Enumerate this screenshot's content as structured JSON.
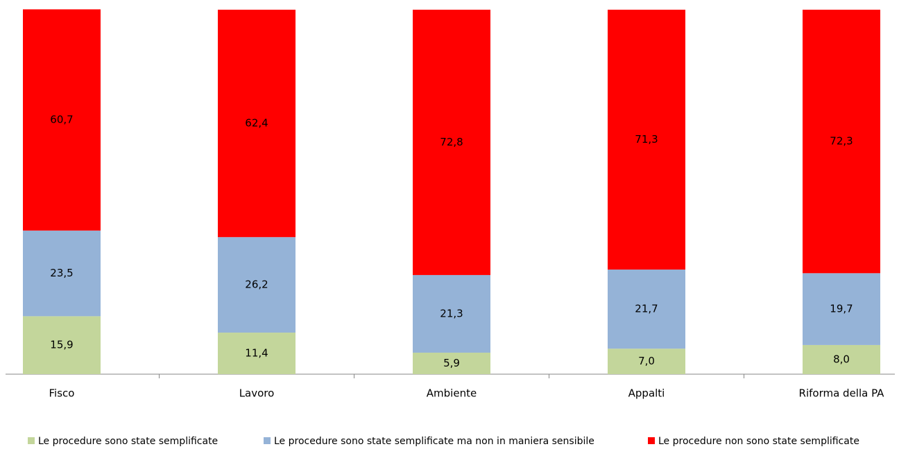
{
  "chart_data": {
    "type": "stacked_bar",
    "categories": [
      "Fisco",
      "Lavoro",
      "Ambiente",
      "Appalti",
      "Riforma della PA"
    ],
    "series": [
      {
        "name": "Le procedure sono state semplificate",
        "color": "#c3d69b",
        "values": [
          15.9,
          11.4,
          5.9,
          7.0,
          8.0
        ],
        "value_labels": [
          "15,9",
          "11,4",
          "5,9",
          "7,0",
          "8,0"
        ]
      },
      {
        "name": "Le procedure sono state semplificate ma non in maniera sensibile",
        "color": "#95b3d7",
        "values": [
          23.5,
          26.2,
          21.3,
          21.7,
          19.7
        ],
        "value_labels": [
          "23,5",
          "26,2",
          "21,3",
          "21,7",
          "19,7"
        ]
      },
      {
        "name": "Le procedure non sono state semplificate",
        "color": "#ff0000",
        "values": [
          60.7,
          62.4,
          72.8,
          71.3,
          72.3
        ],
        "value_labels": [
          "60,7",
          "62,4",
          "72,8",
          "71,3",
          "72,3"
        ]
      }
    ],
    "ylim": [
      0,
      100
    ],
    "legend": "bottom"
  }
}
